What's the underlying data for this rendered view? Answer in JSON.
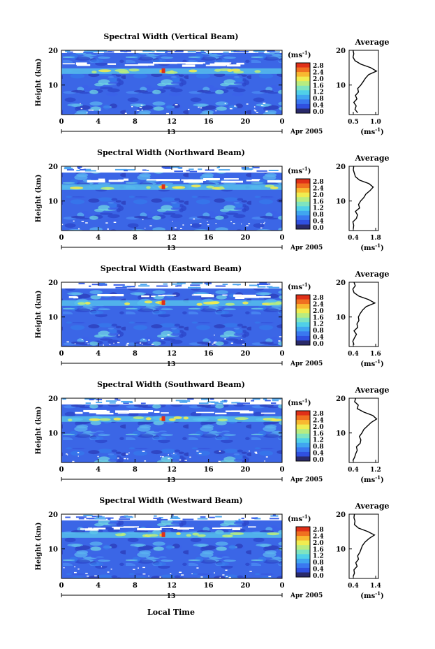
{
  "axes": {
    "y_label": "Height (km)",
    "y_ticks": [
      "20",
      "10"
    ],
    "x_ticks": [
      "0",
      "4",
      "8",
      "12",
      "16",
      "20",
      "0"
    ],
    "day_label": "13",
    "month_label": "Apr 2005",
    "x_label": "Local Time",
    "colorbar_unit": "(ms",
    "unit_exp": "-1",
    "unit_close": ")",
    "colorbar_ticks": [
      "2.8",
      "2.4",
      "2.0",
      "1.6",
      "1.2",
      "0.8",
      "0.4",
      "0.0"
    ],
    "profile_title": "Average",
    "profile_unit": "(ms",
    "profile_y_ticks": [
      "20",
      "10"
    ]
  },
  "colorbar_colors": [
    "#2a2a6a",
    "#3050e0",
    "#3a78f0",
    "#40a6f0",
    "#50d0e8",
    "#7ee4c0",
    "#b8ec80",
    "#f0ec50",
    "#f8b830",
    "#f07020",
    "#e03018"
  ],
  "panels": [
    {
      "title": "Spectral Width (Vertical Beam)",
      "profile_x_ticks": [
        "0.5",
        "1.0"
      ]
    },
    {
      "title": "Spectral Width (Northward Beam)",
      "profile_x_ticks": [
        "0.4",
        "1.8"
      ]
    },
    {
      "title": "Spectral Width (Eastward Beam)",
      "profile_x_ticks": [
        "0.4",
        "1.6"
      ]
    },
    {
      "title": "Spectral Width (Southward Beam)",
      "profile_x_ticks": [
        "0.4",
        "1.2"
      ]
    },
    {
      "title": "Spectral Width (Westward Beam)",
      "profile_x_ticks": [
        "0.4",
        "1.4"
      ]
    }
  ],
  "chart_data": [
    {
      "type": "heatmap",
      "title": "Spectral Width (Vertical Beam)",
      "xlabel": "",
      "ylabel": "Height (km)",
      "xlim": [
        0,
        24
      ],
      "ylim": [
        1.5,
        20
      ],
      "colorbar_range": [
        0.0,
        3.0
      ],
      "unit": "(ms-1)",
      "profile": {
        "title": "Average",
        "xlim": [
          0.4,
          1.15
        ],
        "height": [
          2,
          3,
          4,
          5,
          6,
          7,
          8,
          9,
          10,
          11,
          12,
          13,
          14,
          15,
          16,
          17,
          18,
          19,
          20
        ],
        "value": [
          0.62,
          0.55,
          0.58,
          0.52,
          0.6,
          0.56,
          0.64,
          0.62,
          0.7,
          0.76,
          0.82,
          0.9,
          1.1,
          0.95,
          0.7,
          0.55,
          0.5,
          0.52,
          0.5
        ]
      }
    },
    {
      "type": "heatmap",
      "title": "Spectral Width (Northward Beam)",
      "xlabel": "",
      "ylabel": "Height (km)",
      "xlim": [
        0,
        24
      ],
      "ylim": [
        1.5,
        20
      ],
      "colorbar_range": [
        0.0,
        3.0
      ],
      "unit": "(ms-1)",
      "profile": {
        "title": "Average",
        "xlim": [
          0.4,
          1.8
        ],
        "height": [
          2,
          3,
          4,
          5,
          6,
          7,
          8,
          9,
          10,
          11,
          12,
          13,
          14,
          15,
          16,
          17,
          18,
          19,
          20
        ],
        "value": [
          0.6,
          0.62,
          0.58,
          0.75,
          0.8,
          0.7,
          0.9,
          0.85,
          0.95,
          1.1,
          1.2,
          1.4,
          1.55,
          1.35,
          0.9,
          0.7,
          0.65,
          0.6,
          0.62
        ]
      }
    },
    {
      "type": "heatmap",
      "title": "Spectral Width (Eastward Beam)",
      "xlabel": "",
      "ylabel": "Height (km)",
      "xlim": [
        0,
        24
      ],
      "ylim": [
        1.5,
        20
      ],
      "colorbar_range": [
        0.0,
        3.0
      ],
      "unit": "(ms-1)",
      "profile": {
        "title": "Average",
        "xlim": [
          0.4,
          1.6
        ],
        "height": [
          2,
          3,
          4,
          5,
          6,
          7,
          8,
          9,
          10,
          11,
          12,
          13,
          14,
          15,
          16,
          17,
          18,
          19,
          20
        ],
        "value": [
          0.6,
          0.55,
          0.62,
          0.7,
          0.6,
          0.75,
          0.72,
          0.8,
          0.78,
          0.85,
          0.95,
          1.1,
          1.45,
          1.2,
          0.8,
          0.6,
          0.55,
          0.65,
          0.6
        ]
      }
    },
    {
      "type": "heatmap",
      "title": "Spectral Width (Southward Beam)",
      "xlabel": "",
      "ylabel": "Height (km)",
      "xlim": [
        0,
        24
      ],
      "ylim": [
        1.5,
        20
      ],
      "colorbar_range": [
        0.0,
        3.0
      ],
      "unit": "(ms-1)",
      "profile": {
        "title": "Average",
        "xlim": [
          0.4,
          1.2
        ],
        "height": [
          2,
          3,
          4,
          5,
          6,
          7,
          8,
          9,
          10,
          11,
          12,
          13,
          14,
          15,
          16,
          17,
          18,
          19,
          20
        ],
        "value": [
          0.5,
          0.55,
          0.58,
          0.62,
          0.6,
          0.7,
          0.72,
          0.68,
          0.75,
          0.8,
          0.9,
          1.0,
          1.15,
          1.05,
          0.8,
          0.62,
          0.65,
          0.55,
          0.58
        ]
      }
    },
    {
      "type": "heatmap",
      "title": "Spectral Width (Westward Beam)",
      "xlabel": "Local Time",
      "ylabel": "Height (km)",
      "xlim": [
        0,
        24
      ],
      "ylim": [
        1.5,
        20
      ],
      "colorbar_range": [
        0.0,
        3.0
      ],
      "unit": "(ms-1)",
      "profile": {
        "title": "Average",
        "xlim": [
          0.4,
          1.5
        ],
        "height": [
          2,
          3,
          4,
          5,
          6,
          7,
          8,
          9,
          10,
          11,
          12,
          13,
          14,
          15,
          16,
          17,
          18,
          19,
          20
        ],
        "value": [
          0.55,
          0.6,
          0.58,
          0.7,
          0.65,
          0.75,
          0.72,
          0.8,
          0.85,
          0.9,
          1.0,
          1.15,
          1.35,
          1.1,
          0.75,
          0.6,
          0.62,
          0.58,
          0.6
        ]
      }
    }
  ]
}
